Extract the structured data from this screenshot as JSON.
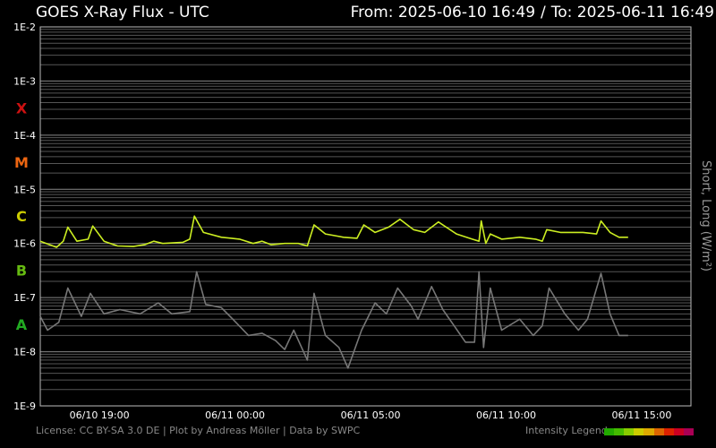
{
  "header": {
    "title": "GOES X-Ray Flux - UTC",
    "from_label": "From: 2025-06-10 16:49",
    "separator": "/",
    "to_label": "To: 2025-06-11 16:49"
  },
  "footer": {
    "license": "License: CC BY-SA 3.0 DE | Plot by Andreas Möller | Data by SWPC",
    "intensity_legend_label": "Intensity Legend",
    "intensity_colors": [
      "#22aa00",
      "#44bb00",
      "#88cc00",
      "#cccc00",
      "#ddaa00",
      "#dd6600",
      "#dd2200",
      "#cc0022",
      "#aa0055"
    ]
  },
  "chart_data": {
    "type": "line",
    "title": "GOES X-Ray Flux - UTC",
    "ylabel": "Short, Long (W/m²)",
    "y_scale": "log",
    "ylim": [
      1e-09,
      0.01
    ],
    "y_ticks": [
      {
        "value": 0.01,
        "label": "1E-2"
      },
      {
        "value": 0.001,
        "label": "1E-3"
      },
      {
        "value": 0.0001,
        "label": "1E-4"
      },
      {
        "value": 1e-05,
        "label": "1E-5"
      },
      {
        "value": 1e-06,
        "label": "1E-6"
      },
      {
        "value": 1e-07,
        "label": "1E-7"
      },
      {
        "value": 1e-08,
        "label": "1E-8"
      },
      {
        "value": 1e-09,
        "label": "1E-9"
      }
    ],
    "flare_classes": [
      {
        "label": "X",
        "value": 0.00032,
        "color": "#cc1111"
      },
      {
        "label": "M",
        "value": 3.2e-05,
        "color": "#ee6611"
      },
      {
        "label": "C",
        "value": 3.2e-06,
        "color": "#cccc00"
      },
      {
        "label": "B",
        "value": 3.2e-07,
        "color": "#66bb11"
      },
      {
        "label": "A",
        "value": 3.2e-08,
        "color": "#22aa22"
      }
    ],
    "xlim": [
      "2025-06-10 16:49",
      "2025-06-11 16:49"
    ],
    "x_ticks": [
      {
        "value": "2025-06-10 19:00",
        "label": "06/10 19:00"
      },
      {
        "value": "2025-06-11 00:00",
        "label": "06/11 00:00"
      },
      {
        "value": "2025-06-11 05:00",
        "label": "06/11 05:00"
      },
      {
        "value": "2025-06-11 10:00",
        "label": "06/11 10:00"
      },
      {
        "value": "2025-06-11 15:00",
        "label": "06/11 15:00"
      }
    ],
    "grid": true,
    "series": [
      {
        "name": "Long",
        "color": "#ccee22",
        "points": [
          [
            "2025-06-10 16:49",
            1.1e-06
          ],
          [
            "2025-06-10 17:25",
            8.5e-07
          ],
          [
            "2025-06-10 17:40",
            1.1e-06
          ],
          [
            "2025-06-10 17:50",
            2e-06
          ],
          [
            "2025-06-10 18:10",
            1.1e-06
          ],
          [
            "2025-06-10 18:35",
            1.2e-06
          ],
          [
            "2025-06-10 18:45",
            2.1e-06
          ],
          [
            "2025-06-10 19:10",
            1.1e-06
          ],
          [
            "2025-06-10 19:40",
            9e-07
          ],
          [
            "2025-06-10 20:15",
            8.8e-07
          ],
          [
            "2025-06-10 20:40",
            9.5e-07
          ],
          [
            "2025-06-10 21:00",
            1.1e-06
          ],
          [
            "2025-06-10 21:20",
            1e-06
          ],
          [
            "2025-06-10 22:05",
            1.05e-06
          ],
          [
            "2025-06-10 22:20",
            1.2e-06
          ],
          [
            "2025-06-10 22:30",
            3.2e-06
          ],
          [
            "2025-06-10 22:50",
            1.6e-06
          ],
          [
            "2025-06-10 23:30",
            1.3e-06
          ],
          [
            "2025-06-11 00:10",
            1.2e-06
          ],
          [
            "2025-06-11 00:40",
            1e-06
          ],
          [
            "2025-06-11 01:00",
            1.1e-06
          ],
          [
            "2025-06-11 01:20",
            9.5e-07
          ],
          [
            "2025-06-11 01:50",
            1e-06
          ],
          [
            "2025-06-11 02:20",
            1e-06
          ],
          [
            "2025-06-11 02:40",
            9e-07
          ],
          [
            "2025-06-11 02:55",
            2.2e-06
          ],
          [
            "2025-06-11 03:20",
            1.5e-06
          ],
          [
            "2025-06-11 04:00",
            1.3e-06
          ],
          [
            "2025-06-11 04:30",
            1.25e-06
          ],
          [
            "2025-06-11 04:45",
            2.2e-06
          ],
          [
            "2025-06-11 05:10",
            1.6e-06
          ],
          [
            "2025-06-11 05:40",
            2e-06
          ],
          [
            "2025-06-11 06:05",
            2.8e-06
          ],
          [
            "2025-06-11 06:35",
            1.8e-06
          ],
          [
            "2025-06-11 07:00",
            1.6e-06
          ],
          [
            "2025-06-11 07:30",
            2.5e-06
          ],
          [
            "2025-06-11 08:10",
            1.5e-06
          ],
          [
            "2025-06-11 08:45",
            1.2e-06
          ],
          [
            "2025-06-11 09:00",
            1.1e-06
          ],
          [
            "2025-06-11 09:05",
            2.6e-06
          ],
          [
            "2025-06-11 09:15",
            1e-06
          ],
          [
            "2025-06-11 09:25",
            1.5e-06
          ],
          [
            "2025-06-11 09:50",
            1.2e-06
          ],
          [
            "2025-06-11 10:30",
            1.3e-06
          ],
          [
            "2025-06-11 11:05",
            1.2e-06
          ],
          [
            "2025-06-11 11:20",
            1.1e-06
          ],
          [
            "2025-06-11 11:30",
            1.8e-06
          ],
          [
            "2025-06-11 12:00",
            1.6e-06
          ],
          [
            "2025-06-11 12:50",
            1.6e-06
          ],
          [
            "2025-06-11 13:20",
            1.5e-06
          ],
          [
            "2025-06-11 13:30",
            2.6e-06
          ],
          [
            "2025-06-11 13:50",
            1.6e-06
          ],
          [
            "2025-06-11 14:10",
            1.3e-06
          ],
          [
            "2025-06-11 14:30",
            1.3e-06
          ]
        ]
      },
      {
        "name": "Short",
        "color": "#777777",
        "points": [
          [
            "2025-06-10 16:49",
            4.5e-08
          ],
          [
            "2025-06-10 17:05",
            2.5e-08
          ],
          [
            "2025-06-10 17:30",
            3.5e-08
          ],
          [
            "2025-06-10 17:50",
            1.5e-07
          ],
          [
            "2025-06-10 18:20",
            4.5e-08
          ],
          [
            "2025-06-10 18:40",
            1.2e-07
          ],
          [
            "2025-06-10 19:10",
            5e-08
          ],
          [
            "2025-06-10 19:45",
            6e-08
          ],
          [
            "2025-06-10 20:30",
            5e-08
          ],
          [
            "2025-06-10 21:10",
            8e-08
          ],
          [
            "2025-06-10 21:40",
            5e-08
          ],
          [
            "2025-06-10 22:20",
            5.5e-08
          ],
          [
            "2025-06-10 22:35",
            3e-07
          ],
          [
            "2025-06-10 22:55",
            7.5e-08
          ],
          [
            "2025-06-10 23:30",
            6.5e-08
          ],
          [
            "2025-06-10 23:55",
            4e-08
          ],
          [
            "2025-06-11 00:30",
            2e-08
          ],
          [
            "2025-06-11 01:00",
            2.2e-08
          ],
          [
            "2025-06-11 01:30",
            1.6e-08
          ],
          [
            "2025-06-11 01:50",
            1.1e-08
          ],
          [
            "2025-06-11 02:10",
            2.5e-08
          ],
          [
            "2025-06-11 02:40",
            7e-09
          ],
          [
            "2025-06-11 02:55",
            1.2e-07
          ],
          [
            "2025-06-11 03:20",
            2e-08
          ],
          [
            "2025-06-11 03:50",
            1.2e-08
          ],
          [
            "2025-06-11 04:10",
            5e-09
          ],
          [
            "2025-06-11 04:40",
            2.5e-08
          ],
          [
            "2025-06-11 05:10",
            8e-08
          ],
          [
            "2025-06-11 05:35",
            5e-08
          ],
          [
            "2025-06-11 06:00",
            1.5e-07
          ],
          [
            "2025-06-11 06:30",
            7e-08
          ],
          [
            "2025-06-11 06:45",
            4e-08
          ],
          [
            "2025-06-11 07:15",
            1.6e-07
          ],
          [
            "2025-06-11 07:40",
            6e-08
          ],
          [
            "2025-06-11 08:05",
            3e-08
          ],
          [
            "2025-06-11 08:30",
            1.5e-08
          ],
          [
            "2025-06-11 08:50",
            1.5e-08
          ],
          [
            "2025-06-11 09:00",
            3e-07
          ],
          [
            "2025-06-11 09:10",
            1.2e-08
          ],
          [
            "2025-06-11 09:25",
            1.5e-07
          ],
          [
            "2025-06-11 09:50",
            2.5e-08
          ],
          [
            "2025-06-11 10:30",
            4e-08
          ],
          [
            "2025-06-11 11:00",
            2e-08
          ],
          [
            "2025-06-11 11:20",
            3e-08
          ],
          [
            "2025-06-11 11:35",
            1.5e-07
          ],
          [
            "2025-06-11 12:10",
            5e-08
          ],
          [
            "2025-06-11 12:40",
            2.5e-08
          ],
          [
            "2025-06-11 13:00",
            4e-08
          ],
          [
            "2025-06-11 13:30",
            2.8e-07
          ],
          [
            "2025-06-11 13:50",
            5e-08
          ],
          [
            "2025-06-11 14:10",
            2e-08
          ],
          [
            "2025-06-11 14:30",
            2e-08
          ]
        ]
      }
    ]
  }
}
